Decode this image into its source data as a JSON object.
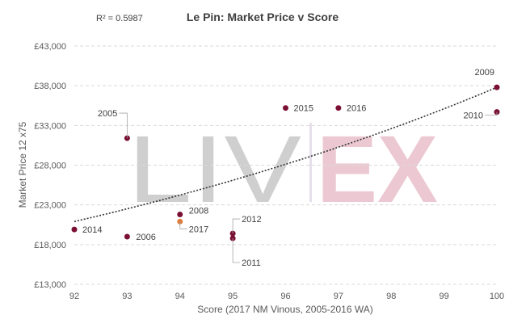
{
  "chart_data": {
    "type": "scatter",
    "title": "Le Pin: Market Price v Score",
    "annotation": "R² = 0.5987",
    "xlabel": "Score (2017 NM Vinous, 2005-2016 WA)",
    "ylabel": "Market Price 12 x75",
    "xlim": [
      92,
      100
    ],
    "ylim": [
      13000,
      43000
    ],
    "x_ticks": [
      "92",
      "93",
      "94",
      "95",
      "96",
      "97",
      "98",
      "99",
      "100"
    ],
    "y_ticks": [
      "£13,000",
      "£18,000",
      "£23,000",
      "£28,000",
      "£33,000",
      "£38,000",
      "£43,000"
    ],
    "grid": true,
    "watermark": "LIV-EX",
    "colors": {
      "points": "#7b1035",
      "highlight": "#e07b3a",
      "trendline": "#333333",
      "watermark_grey": "#cfcfcf",
      "watermark_pink": "#ecc9d2"
    },
    "points": [
      {
        "label": "2005",
        "x": 93,
        "y": 31400
      },
      {
        "label": "2006",
        "x": 93,
        "y": 19000
      },
      {
        "label": "2008",
        "x": 94,
        "y": 21800
      },
      {
        "label": "2017",
        "x": 94,
        "y": 20900,
        "highlight": true
      },
      {
        "label": "2012",
        "x": 95,
        "y": 19400
      },
      {
        "label": "2011",
        "x": 95,
        "y": 18800
      },
      {
        "label": "2014",
        "x": 92,
        "y": 19900
      },
      {
        "label": "2015",
        "x": 96,
        "y": 35200
      },
      {
        "label": "2016",
        "x": 97,
        "y": 35200
      },
      {
        "label": "2009",
        "x": 100,
        "y": 37800
      },
      {
        "label": "2010",
        "x": 100,
        "y": 34700
      }
    ],
    "trendline": {
      "type": "exponential",
      "x": [
        92,
        100
      ],
      "y": [
        20900,
        37800
      ]
    }
  }
}
